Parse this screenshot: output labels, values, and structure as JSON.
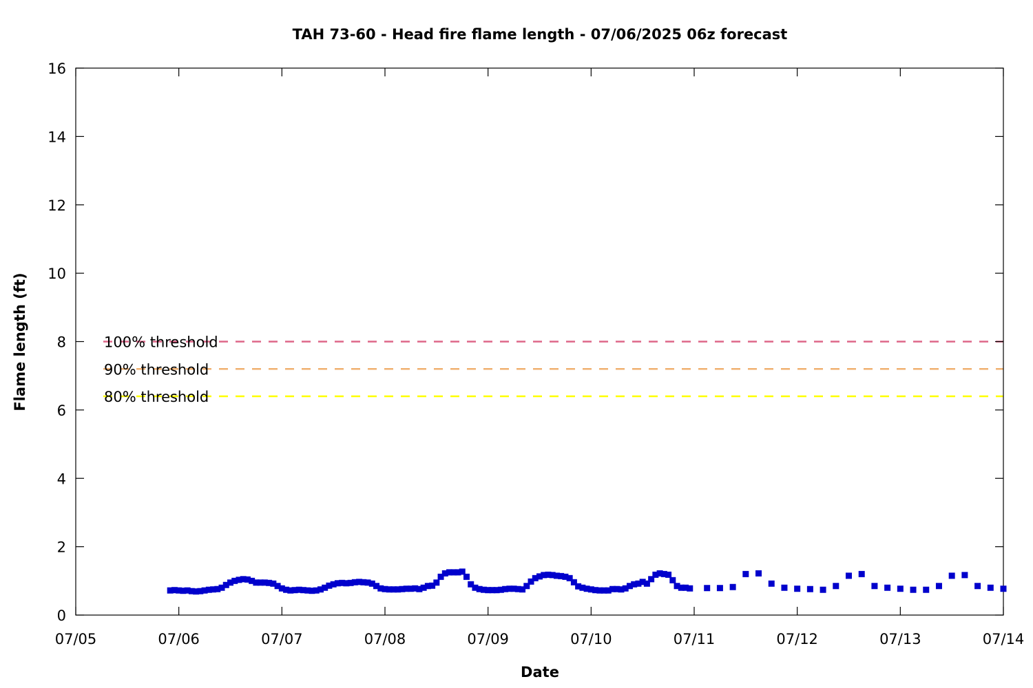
{
  "chart_data": {
    "type": "scatter",
    "title": "TAH 73-60 - Head fire flame length - 07/06/2025 06z forecast",
    "xlabel": "Date",
    "ylabel": "Flame length (ft)",
    "x_tick_labels": [
      "07/05",
      "07/06",
      "07/07",
      "07/08",
      "07/09",
      "07/10",
      "07/11",
      "07/12",
      "07/13",
      "07/14"
    ],
    "y_tick_labels": [
      "0",
      "2",
      "4",
      "6",
      "8",
      "10",
      "12",
      "14",
      "16"
    ],
    "ylim": [
      0,
      16
    ],
    "xlim": [
      "07/05 00z",
      "07/14 00z"
    ],
    "grid": false,
    "thresholds": [
      {
        "label": "100% threshold",
        "value": 8.0,
        "color": "#dd6688"
      },
      {
        "label": "90% threshold",
        "value": 7.2,
        "color": "#f0b070"
      },
      {
        "label": "80% threshold",
        "value": 6.4,
        "color": "#ffff00"
      }
    ],
    "series": [
      {
        "color": "#0000cc",
        "points": [
          [
            "07/05 22z",
            0.72
          ],
          [
            "07/05 23z",
            0.73
          ],
          [
            "07/06 00z",
            0.72
          ],
          [
            "07/06 01z",
            0.71
          ],
          [
            "07/06 02z",
            0.72
          ],
          [
            "07/06 03z",
            0.7
          ],
          [
            "07/06 04z",
            0.69
          ],
          [
            "07/06 05z",
            0.7
          ],
          [
            "07/06 06z",
            0.72
          ],
          [
            "07/06 07z",
            0.74
          ],
          [
            "07/06 08z",
            0.75
          ],
          [
            "07/06 09z",
            0.76
          ],
          [
            "07/06 10z",
            0.8
          ],
          [
            "07/06 11z",
            0.88
          ],
          [
            "07/06 12z",
            0.95
          ],
          [
            "07/06 13z",
            1.0
          ],
          [
            "07/06 14z",
            1.03
          ],
          [
            "07/06 15z",
            1.05
          ],
          [
            "07/06 16z",
            1.04
          ],
          [
            "07/06 17z",
            1.0
          ],
          [
            "07/06 18z",
            0.95
          ],
          [
            "07/06 19z",
            0.95
          ],
          [
            "07/06 20z",
            0.95
          ],
          [
            "07/06 21z",
            0.94
          ],
          [
            "07/06 22z",
            0.92
          ],
          [
            "07/06 23z",
            0.85
          ],
          [
            "07/07 00z",
            0.78
          ],
          [
            "07/07 01z",
            0.74
          ],
          [
            "07/07 02z",
            0.72
          ],
          [
            "07/07 03z",
            0.73
          ],
          [
            "07/07 04z",
            0.74
          ],
          [
            "07/07 05z",
            0.73
          ],
          [
            "07/07 06z",
            0.72
          ],
          [
            "07/07 07z",
            0.71
          ],
          [
            "07/07 08z",
            0.72
          ],
          [
            "07/07 09z",
            0.75
          ],
          [
            "07/07 10z",
            0.8
          ],
          [
            "07/07 11z",
            0.86
          ],
          [
            "07/07 12z",
            0.9
          ],
          [
            "07/07 13z",
            0.93
          ],
          [
            "07/07 14z",
            0.94
          ],
          [
            "07/07 15z",
            0.93
          ],
          [
            "07/07 16z",
            0.94
          ],
          [
            "07/07 17z",
            0.96
          ],
          [
            "07/07 18z",
            0.97
          ],
          [
            "07/07 19z",
            0.96
          ],
          [
            "07/07 20z",
            0.95
          ],
          [
            "07/07 21z",
            0.92
          ],
          [
            "07/07 22z",
            0.85
          ],
          [
            "07/07 23z",
            0.78
          ],
          [
            "07/08 00z",
            0.76
          ],
          [
            "07/08 01z",
            0.75
          ],
          [
            "07/08 02z",
            0.75
          ],
          [
            "07/08 03z",
            0.75
          ],
          [
            "07/08 04z",
            0.76
          ],
          [
            "07/08 05z",
            0.77
          ],
          [
            "07/08 06z",
            0.77
          ],
          [
            "07/08 07z",
            0.78
          ],
          [
            "07/08 08z",
            0.76
          ],
          [
            "07/08 09z",
            0.8
          ],
          [
            "07/08 10z",
            0.85
          ],
          [
            "07/08 11z",
            0.86
          ],
          [
            "07/08 12z",
            0.95
          ],
          [
            "07/08 13z",
            1.12
          ],
          [
            "07/08 14z",
            1.22
          ],
          [
            "07/08 15z",
            1.25
          ],
          [
            "07/08 16z",
            1.25
          ],
          [
            "07/08 17z",
            1.25
          ],
          [
            "07/08 18z",
            1.27
          ],
          [
            "07/08 19z",
            1.12
          ],
          [
            "07/08 20z",
            0.9
          ],
          [
            "07/08 21z",
            0.8
          ],
          [
            "07/08 22z",
            0.76
          ],
          [
            "07/08 23z",
            0.74
          ],
          [
            "07/09 00z",
            0.73
          ],
          [
            "07/09 01z",
            0.73
          ],
          [
            "07/09 02z",
            0.73
          ],
          [
            "07/09 03z",
            0.74
          ],
          [
            "07/09 04z",
            0.76
          ],
          [
            "07/09 05z",
            0.77
          ],
          [
            "07/09 06z",
            0.77
          ],
          [
            "07/09 07z",
            0.76
          ],
          [
            "07/09 08z",
            0.75
          ],
          [
            "07/09 09z",
            0.85
          ],
          [
            "07/09 10z",
            0.98
          ],
          [
            "07/09 11z",
            1.08
          ],
          [
            "07/09 12z",
            1.13
          ],
          [
            "07/09 13z",
            1.17
          ],
          [
            "07/09 14z",
            1.18
          ],
          [
            "07/09 15z",
            1.17
          ],
          [
            "07/09 16z",
            1.15
          ],
          [
            "07/09 17z",
            1.14
          ],
          [
            "07/09 18z",
            1.12
          ],
          [
            "07/09 19z",
            1.08
          ],
          [
            "07/09 20z",
            0.96
          ],
          [
            "07/09 21z",
            0.84
          ],
          [
            "07/09 22z",
            0.8
          ],
          [
            "07/09 23z",
            0.77
          ],
          [
            "07/10 00z",
            0.75
          ],
          [
            "07/10 01z",
            0.73
          ],
          [
            "07/10 02z",
            0.72
          ],
          [
            "07/10 03z",
            0.72
          ],
          [
            "07/10 04z",
            0.72
          ],
          [
            "07/10 05z",
            0.76
          ],
          [
            "07/10 06z",
            0.76
          ],
          [
            "07/10 07z",
            0.75
          ],
          [
            "07/10 08z",
            0.78
          ],
          [
            "07/10 09z",
            0.85
          ],
          [
            "07/10 10z",
            0.9
          ],
          [
            "07/10 11z",
            0.92
          ],
          [
            "07/10 12z",
            0.97
          ],
          [
            "07/10 13z",
            0.92
          ],
          [
            "07/10 14z",
            1.05
          ],
          [
            "07/10 15z",
            1.18
          ],
          [
            "07/10 16z",
            1.22
          ],
          [
            "07/10 17z",
            1.2
          ],
          [
            "07/10 18z",
            1.18
          ],
          [
            "07/10 19z",
            1.02
          ],
          [
            "07/10 20z",
            0.85
          ],
          [
            "07/10 21z",
            0.8
          ],
          [
            "07/10 22z",
            0.8
          ],
          [
            "07/10 23z",
            0.78
          ],
          [
            "07/11 03z",
            0.79
          ],
          [
            "07/11 06z",
            0.79
          ],
          [
            "07/11 09z",
            0.82
          ],
          [
            "07/11 12z",
            1.2
          ],
          [
            "07/11 15z",
            1.22
          ],
          [
            "07/11 18z",
            0.92
          ],
          [
            "07/11 21z",
            0.8
          ],
          [
            "07/12 00z",
            0.77
          ],
          [
            "07/12 03z",
            0.76
          ],
          [
            "07/12 06z",
            0.74
          ],
          [
            "07/12 09z",
            0.85
          ],
          [
            "07/12 12z",
            1.15
          ],
          [
            "07/12 15z",
            1.2
          ],
          [
            "07/12 18z",
            0.85
          ],
          [
            "07/12 21z",
            0.8
          ],
          [
            "07/13 00z",
            0.77
          ],
          [
            "07/13 03z",
            0.74
          ],
          [
            "07/13 06z",
            0.74
          ],
          [
            "07/13 09z",
            0.85
          ],
          [
            "07/13 12z",
            1.15
          ],
          [
            "07/13 15z",
            1.17
          ],
          [
            "07/13 18z",
            0.85
          ],
          [
            "07/13 21z",
            0.8
          ],
          [
            "07/14 00z",
            0.77
          ]
        ]
      }
    ]
  }
}
